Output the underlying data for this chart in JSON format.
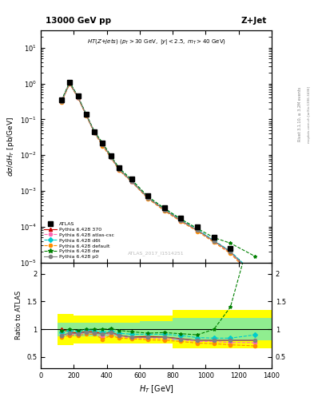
{
  "title_left": "13000 GeV pp",
  "title_right": "Z+Jet",
  "watermark": "ATLAS_2017_I1514251",
  "rivet_text": "Rivet 3.1.10, ≥ 3.2M events",
  "mcplots_text": "mcplots.cern.ch [arXiv:1306.3436]",
  "ylabel_ratio": "Ratio to ATLAS",
  "xlim": [
    0,
    1400
  ],
  "ylim_main": [
    1e-05,
    30
  ],
  "ylim_ratio": [
    0.3,
    2.2
  ],
  "ht_bins": [
    100,
    150,
    200,
    250,
    300,
    350,
    400,
    450,
    500,
    600,
    700,
    800,
    900,
    1000,
    1100,
    1200,
    1400
  ],
  "atlas_y": [
    0.35,
    1.1,
    0.45,
    0.14,
    0.046,
    0.022,
    0.0095,
    0.0045,
    0.0022,
    0.00075,
    0.00035,
    0.00018,
    0.0001,
    5e-05,
    2.5e-05,
    5e-06
  ],
  "py370_y": [
    0.32,
    1.05,
    0.42,
    0.135,
    0.044,
    0.02,
    0.009,
    0.004,
    0.0019,
    0.00065,
    0.0003,
    0.00015,
    8e-05,
    4e-05,
    2e-05,
    4e-06
  ],
  "pyatlas_y": [
    0.31,
    1.0,
    0.41,
    0.132,
    0.043,
    0.019,
    0.0088,
    0.0039,
    0.00185,
    0.00063,
    0.00029,
    0.000145,
    7.8e-05,
    3.9e-05,
    1.9e-05,
    3.8e-06
  ],
  "pyd6t_y": [
    0.33,
    1.08,
    0.43,
    0.138,
    0.045,
    0.021,
    0.0092,
    0.0042,
    0.002,
    0.00068,
    0.00032,
    0.00016,
    8.5e-05,
    4.2e-05,
    2.1e-05,
    4.5e-06
  ],
  "pydef_y": [
    0.3,
    0.98,
    0.4,
    0.128,
    0.042,
    0.018,
    0.0085,
    0.0038,
    0.00182,
    0.00061,
    0.00028,
    0.00014,
    7.5e-05,
    3.7e-05,
    1.8e-05,
    3.5e-06
  ],
  "pydw_y": [
    0.34,
    1.1,
    0.44,
    0.14,
    0.046,
    0.022,
    0.0096,
    0.0044,
    0.0021,
    0.0007,
    0.00033,
    0.000165,
    9e-05,
    5e-05,
    3.5e-05,
    1.5e-05
  ],
  "pyp0_y": [
    0.31,
    1.02,
    0.415,
    0.133,
    0.043,
    0.02,
    0.0089,
    0.004,
    0.00188,
    0.00064,
    0.0003,
    0.000148,
    8e-05,
    4e-05,
    2e-05,
    4e-06
  ],
  "color_atlas": "#000000",
  "color_py370": "#cc0000",
  "color_pyatlas": "#ff69b4",
  "color_pyd6t": "#00cccc",
  "color_pydef": "#ff8c00",
  "color_pydw": "#008000",
  "color_pyp0": "#808080",
  "band_yellow": "#ffff00",
  "band_green": "#90ee90",
  "ratio_py370": [
    1.0,
    0.95,
    0.93,
    0.96,
    0.96,
    0.91,
    0.95,
    0.89,
    0.86,
    0.87,
    0.86,
    0.83,
    0.8,
    0.8,
    0.8,
    0.8
  ],
  "ratio_pyatlas": [
    0.89,
    0.91,
    0.91,
    0.94,
    0.93,
    0.86,
    0.93,
    0.87,
    0.84,
    0.84,
    0.83,
    0.81,
    0.78,
    0.78,
    0.76,
    0.76
  ],
  "ratio_pyd6t": [
    0.94,
    0.98,
    0.96,
    0.99,
    0.98,
    0.95,
    0.97,
    0.93,
    0.91,
    0.91,
    0.91,
    0.89,
    0.85,
    0.84,
    0.84,
    0.9
  ],
  "ratio_pydef": [
    0.86,
    0.89,
    0.89,
    0.91,
    0.91,
    0.82,
    0.89,
    0.84,
    0.83,
    0.81,
    0.8,
    0.78,
    0.75,
    0.74,
    0.72,
    0.7
  ],
  "ratio_pydw": [
    0.97,
    1.0,
    0.98,
    1.0,
    1.0,
    1.0,
    1.01,
    0.98,
    0.955,
    0.93,
    0.94,
    0.92,
    0.9,
    1.0,
    1.4,
    3.0
  ],
  "ratio_pyp0": [
    0.89,
    0.93,
    0.92,
    0.95,
    0.93,
    0.91,
    0.94,
    0.89,
    0.855,
    0.853,
    0.857,
    0.822,
    0.8,
    0.8,
    0.8,
    0.8
  ],
  "band_yellow_lo": [
    0.72,
    0.72,
    0.75,
    0.75,
    0.75,
    0.75,
    0.75,
    0.75,
    0.75,
    0.75,
    0.75,
    0.65,
    0.65,
    0.65,
    0.65,
    0.65
  ],
  "band_yellow_hi": [
    1.28,
    1.28,
    1.25,
    1.25,
    1.25,
    1.25,
    1.25,
    1.25,
    1.25,
    1.25,
    1.25,
    1.35,
    1.35,
    1.35,
    1.35,
    1.35
  ],
  "band_green_lo": [
    0.88,
    0.88,
    0.88,
    0.88,
    0.88,
    0.88,
    0.88,
    0.88,
    0.88,
    0.85,
    0.85,
    0.8,
    0.8,
    0.8,
    0.8,
    0.8
  ],
  "band_green_hi": [
    1.12,
    1.12,
    1.12,
    1.12,
    1.12,
    1.12,
    1.12,
    1.12,
    1.12,
    1.15,
    1.15,
    1.2,
    1.2,
    1.2,
    1.2,
    1.2
  ]
}
